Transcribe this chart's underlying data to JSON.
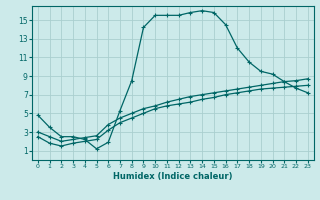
{
  "xlabel": "Humidex (Indice chaleur)",
  "ylabel": "",
  "xlim": [
    -0.5,
    23.5
  ],
  "ylim": [
    0,
    16.5
  ],
  "xticks": [
    0,
    1,
    2,
    3,
    4,
    5,
    6,
    7,
    8,
    9,
    10,
    11,
    12,
    13,
    14,
    15,
    16,
    17,
    18,
    19,
    20,
    21,
    22,
    23
  ],
  "yticks": [
    1,
    3,
    5,
    7,
    9,
    11,
    13,
    15
  ],
  "bg_color": "#cceaea",
  "grid_color": "#aacfcf",
  "line_color": "#006666",
  "line1_x": [
    0,
    1,
    2,
    3,
    4,
    5,
    6,
    7,
    8,
    9,
    10,
    11,
    12,
    13,
    14,
    15,
    16,
    17,
    18,
    19,
    20,
    21,
    22,
    23
  ],
  "line1_y": [
    4.8,
    3.5,
    2.5,
    2.5,
    2.2,
    1.2,
    1.9,
    5.3,
    8.5,
    14.2,
    15.5,
    15.5,
    15.5,
    15.8,
    16.0,
    15.8,
    14.5,
    12.0,
    10.5,
    9.5,
    9.2,
    8.4,
    7.7,
    7.2
  ],
  "line2_x": [
    0,
    1,
    2,
    3,
    4,
    5,
    6,
    7,
    8,
    9,
    10,
    11,
    12,
    13,
    14,
    15,
    16,
    17,
    18,
    19,
    20,
    21,
    22,
    23
  ],
  "line2_y": [
    3.0,
    2.5,
    2.0,
    2.2,
    2.4,
    2.6,
    3.8,
    4.5,
    5.0,
    5.5,
    5.8,
    6.2,
    6.5,
    6.8,
    7.0,
    7.2,
    7.4,
    7.6,
    7.8,
    8.0,
    8.2,
    8.4,
    8.5,
    8.7
  ],
  "line3_x": [
    0,
    1,
    2,
    3,
    4,
    5,
    6,
    7,
    8,
    9,
    10,
    11,
    12,
    13,
    14,
    15,
    16,
    17,
    18,
    19,
    20,
    21,
    22,
    23
  ],
  "line3_y": [
    2.5,
    1.8,
    1.5,
    1.8,
    2.0,
    2.2,
    3.2,
    4.0,
    4.5,
    5.0,
    5.5,
    5.8,
    6.0,
    6.2,
    6.5,
    6.7,
    7.0,
    7.2,
    7.4,
    7.6,
    7.7,
    7.8,
    7.9,
    8.0
  ]
}
